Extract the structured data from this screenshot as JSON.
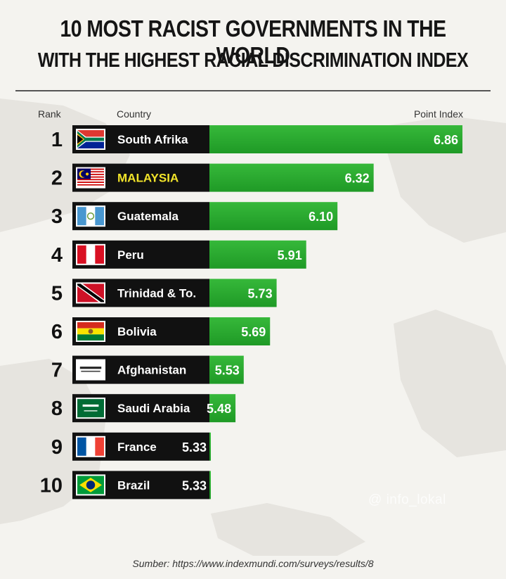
{
  "header": {
    "title_line1": "10 MOST RACIST GOVERNMENTS IN THE WORLD",
    "title_line2": "WITH THE HIGHEST RACIAL DISCRIMINATION INDEX"
  },
  "chart_data": {
    "type": "bar",
    "orientation": "horizontal",
    "column_headers": {
      "rank": "Rank",
      "country": "Country",
      "value": "Point Index"
    },
    "categories": [
      "South Afrika",
      "MALAYSIA",
      "Guatemala",
      "Peru",
      "Trinidad & To.",
      "Bolivia",
      "Afghanistan",
      "Saudi Arabia",
      "France",
      "Brazil"
    ],
    "ranks": [
      "1",
      "2",
      "3",
      "4",
      "5",
      "6",
      "7",
      "8",
      "9",
      "10"
    ],
    "values": [
      6.86,
      6.32,
      6.1,
      5.91,
      5.73,
      5.69,
      5.53,
      5.48,
      5.33,
      5.33
    ],
    "value_labels": [
      "6.86",
      "6.32",
      "6.10",
      "5.91",
      "5.73",
      "5.69",
      "5.53",
      "5.48",
      "5.33",
      "5.33"
    ],
    "highlighted_category": "MALAYSIA",
    "flags": [
      "south-africa-flag-icon",
      "malaysia-flag-icon",
      "guatemala-flag-icon",
      "peru-flag-icon",
      "trinidad-and-tobago-flag-icon",
      "bolivia-flag-icon",
      "afghanistan-flag-icon",
      "saudi-arabia-flag-icon",
      "france-flag-icon",
      "brazil-flag-icon"
    ],
    "colors": {
      "bar": "#1f9a26",
      "bar_light": "#36b83a",
      "label_bg": "#111111",
      "highlight_text": "#f2e42a"
    }
  },
  "footer": {
    "source": "Sumber: https://www.indexmundi.com/surveys/results/8",
    "watermark": "@ info_lokal"
  }
}
